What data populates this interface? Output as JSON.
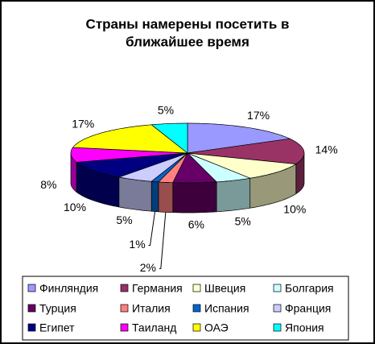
{
  "chart_data": {
    "type": "pie3d",
    "title": [
      "Страны намерены посетить в",
      "ближайшее время"
    ],
    "categories": [
      "Финляндия",
      "Германия",
      "Швеция",
      "Болгария",
      "Турция",
      "Италия",
      "Испания",
      "Франция",
      "Египет",
      "Таиланд",
      "ОАЭ",
      "Япония"
    ],
    "values": [
      17,
      14,
      10,
      5,
      6,
      2,
      1,
      5,
      10,
      8,
      17,
      5
    ],
    "value_labels": [
      "17%",
      "14%",
      "10%",
      "5%",
      "6%",
      "2%",
      "1%",
      "5%",
      "10%",
      "8%",
      "17%",
      "5%"
    ],
    "colors": [
      "#9999ff",
      "#993366",
      "#ffffcc",
      "#ccffff",
      "#660066",
      "#ff8080",
      "#0066cc",
      "#ccccff",
      "#000080",
      "#ff00ff",
      "#ffff00",
      "#00ffff"
    ],
    "legend": "bottom"
  }
}
